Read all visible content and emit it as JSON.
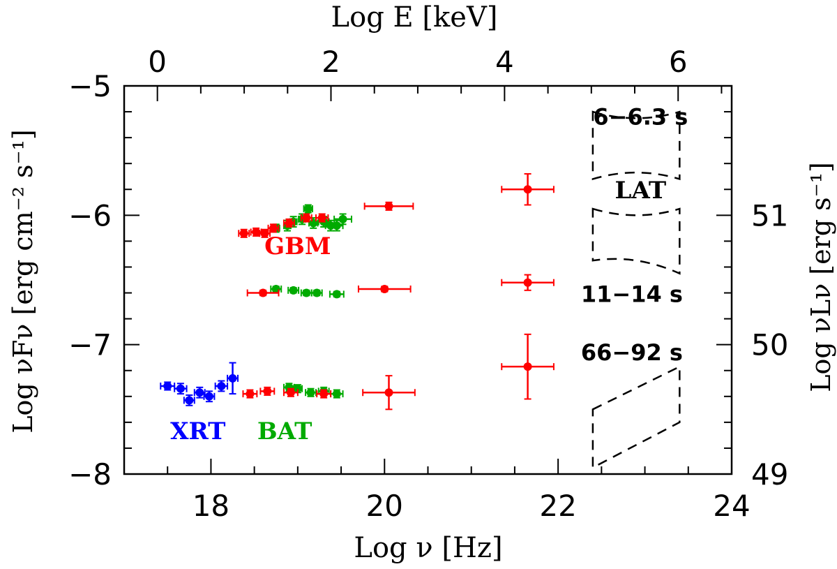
{
  "chart_data": {
    "type": "scatter",
    "xlabel": "Log ν  [Hz]",
    "ylabel": "Log νFν  [erg cm⁻² s⁻¹]",
    "top_xlabel": "Log E [keV]",
    "right_ylabel": "Log νLν  [erg s⁻¹]",
    "xlim": [
      17,
      24
    ],
    "ylim": [
      -8,
      -5
    ],
    "x_ticks": [
      18,
      20,
      22,
      24
    ],
    "y_ticks": [
      -8,
      -7,
      -6,
      -5
    ],
    "top_ticks": [
      0,
      2,
      4,
      6
    ],
    "right_ticks": [
      49,
      50,
      51
    ],
    "colors": {
      "XRT": "#0000ff",
      "BAT": "#00aa00",
      "GBM": "#ff0000",
      "axis": "#000000"
    },
    "labels": [
      {
        "text": "GBM",
        "color": "#ff0000",
        "x": 19.0,
        "y": -6.3
      },
      {
        "text": "XRT",
        "color": "#0000ff",
        "x": 17.85,
        "y": -7.73
      },
      {
        "text": "BAT",
        "color": "#00aa00",
        "x": 18.85,
        "y": -7.73
      },
      {
        "text": "LAT",
        "color": "#000000",
        "x": 22.95,
        "y": -5.87
      }
    ],
    "annotations": [
      {
        "text": "6−6.3 s",
        "x": 22.95,
        "y": -5.3
      },
      {
        "text": "11−14 s",
        "x": 22.85,
        "y": -6.67
      },
      {
        "text": "66−92 s",
        "x": 22.85,
        "y": -7.12
      }
    ],
    "series": [
      {
        "name": "XRT",
        "color": "#0000ff",
        "points": [
          {
            "x": 17.5,
            "y": -7.32,
            "xerr": 0.08,
            "yerr": 0.03
          },
          {
            "x": 17.65,
            "y": -7.34,
            "xerr": 0.07,
            "yerr": 0.04
          },
          {
            "x": 17.75,
            "y": -7.43,
            "xerr": 0.06,
            "yerr": 0.04
          },
          {
            "x": 17.87,
            "y": -7.37,
            "xerr": 0.06,
            "yerr": 0.04
          },
          {
            "x": 17.98,
            "y": -7.4,
            "xerr": 0.06,
            "yerr": 0.04
          },
          {
            "x": 18.12,
            "y": -7.32,
            "xerr": 0.07,
            "yerr": 0.04
          },
          {
            "x": 18.25,
            "y": -7.26,
            "xerr": 0.06,
            "yerr": 0.12
          }
        ]
      },
      {
        "name": "BAT",
        "color": "#00aa00",
        "points": [
          {
            "x": 18.75,
            "y": -6.1,
            "xerr": 0.04,
            "yerr": 0.03
          },
          {
            "x": 18.88,
            "y": -6.08,
            "xerr": 0.04,
            "yerr": 0.04
          },
          {
            "x": 18.95,
            "y": -6.05,
            "xerr": 0.04,
            "yerr": 0.04
          },
          {
            "x": 19.05,
            "y": -6.03,
            "xerr": 0.04,
            "yerr": 0.04
          },
          {
            "x": 19.12,
            "y": -5.95,
            "xerr": 0.05,
            "yerr": 0.03
          },
          {
            "x": 19.18,
            "y": -6.06,
            "xerr": 0.05,
            "yerr": 0.04
          },
          {
            "x": 19.3,
            "y": -6.05,
            "xerr": 0.06,
            "yerr": 0.04
          },
          {
            "x": 19.38,
            "y": -6.08,
            "xerr": 0.06,
            "yerr": 0.04
          },
          {
            "x": 19.45,
            "y": -6.08,
            "xerr": 0.07,
            "yerr": 0.04
          },
          {
            "x": 19.52,
            "y": -6.03,
            "xerr": 0.1,
            "yerr": 0.04
          },
          {
            "x": 18.75,
            "y": -6.57,
            "xerr": 0.06,
            "yerr": 0.02
          },
          {
            "x": 18.95,
            "y": -6.58,
            "xerr": 0.06,
            "yerr": 0.02
          },
          {
            "x": 19.1,
            "y": -6.6,
            "xerr": 0.06,
            "yerr": 0.02
          },
          {
            "x": 19.22,
            "y": -6.6,
            "xerr": 0.06,
            "yerr": 0.02
          },
          {
            "x": 19.45,
            "y": -6.61,
            "xerr": 0.08,
            "yerr": 0.02
          },
          {
            "x": 18.9,
            "y": -7.33,
            "xerr": 0.06,
            "yerr": 0.03
          },
          {
            "x": 19.0,
            "y": -7.34,
            "xerr": 0.05,
            "yerr": 0.03
          },
          {
            "x": 19.15,
            "y": -7.37,
            "xerr": 0.06,
            "yerr": 0.03
          },
          {
            "x": 19.3,
            "y": -7.36,
            "xerr": 0.06,
            "yerr": 0.03
          },
          {
            "x": 19.45,
            "y": -7.38,
            "xerr": 0.07,
            "yerr": 0.03
          }
        ]
      },
      {
        "name": "GBM",
        "color": "#ff0000",
        "points": [
          {
            "x": 18.38,
            "y": -6.14,
            "xerr": 0.06,
            "yerr": 0.03
          },
          {
            "x": 18.52,
            "y": -6.13,
            "xerr": 0.06,
            "yerr": 0.03
          },
          {
            "x": 18.62,
            "y": -6.14,
            "xerr": 0.06,
            "yerr": 0.03
          },
          {
            "x": 18.72,
            "y": -6.1,
            "xerr": 0.06,
            "yerr": 0.03
          },
          {
            "x": 18.9,
            "y": -6.06,
            "xerr": 0.06,
            "yerr": 0.03
          },
          {
            "x": 19.1,
            "y": -6.02,
            "xerr": 0.06,
            "yerr": 0.03
          },
          {
            "x": 19.28,
            "y": -6.02,
            "xerr": 0.07,
            "yerr": 0.03
          },
          {
            "x": 20.05,
            "y": -5.93,
            "xerr": 0.28,
            "yerr": 0.03
          },
          {
            "x": 21.65,
            "y": -5.8,
            "xerr": 0.3,
            "yerr": 0.12
          },
          {
            "x": 18.6,
            "y": -6.6,
            "xerr": 0.18,
            "yerr": 0.02
          },
          {
            "x": 20.0,
            "y": -6.57,
            "xerr": 0.3,
            "yerr": 0.02
          },
          {
            "x": 21.65,
            "y": -6.52,
            "xerr": 0.3,
            "yerr": 0.06
          },
          {
            "x": 18.45,
            "y": -7.38,
            "xerr": 0.08,
            "yerr": 0.03
          },
          {
            "x": 18.65,
            "y": -7.36,
            "xerr": 0.08,
            "yerr": 0.03
          },
          {
            "x": 18.92,
            "y": -7.37,
            "xerr": 0.08,
            "yerr": 0.03
          },
          {
            "x": 19.3,
            "y": -7.38,
            "xerr": 0.08,
            "yerr": 0.03
          },
          {
            "x": 20.05,
            "y": -7.37,
            "xerr": 0.3,
            "yerr": 0.13
          },
          {
            "x": 21.65,
            "y": -7.17,
            "xerr": 0.3,
            "yerr": 0.25
          }
        ]
      }
    ],
    "lat_bowties": [
      {
        "name": "6-6.3 s",
        "x": [
          22.4,
          23.4
        ],
        "upper": [
          -5.2,
          -5.2
        ],
        "lower": [
          -5.72,
          -5.72
        ],
        "sag": 0.05
      },
      {
        "name": "6-6.3 s lower",
        "x": [
          22.4,
          23.4
        ],
        "upper": [
          -5.95,
          -5.95
        ],
        "lower": [
          -6.35,
          -6.45
        ],
        "sag": 0.05
      },
      {
        "name": "66-92 s",
        "x": [
          22.4,
          23.4
        ],
        "upper": [
          -7.5,
          -7.17
        ],
        "lower": [
          -7.95,
          -7.6
        ],
        "sag": 0.0
      }
    ]
  }
}
